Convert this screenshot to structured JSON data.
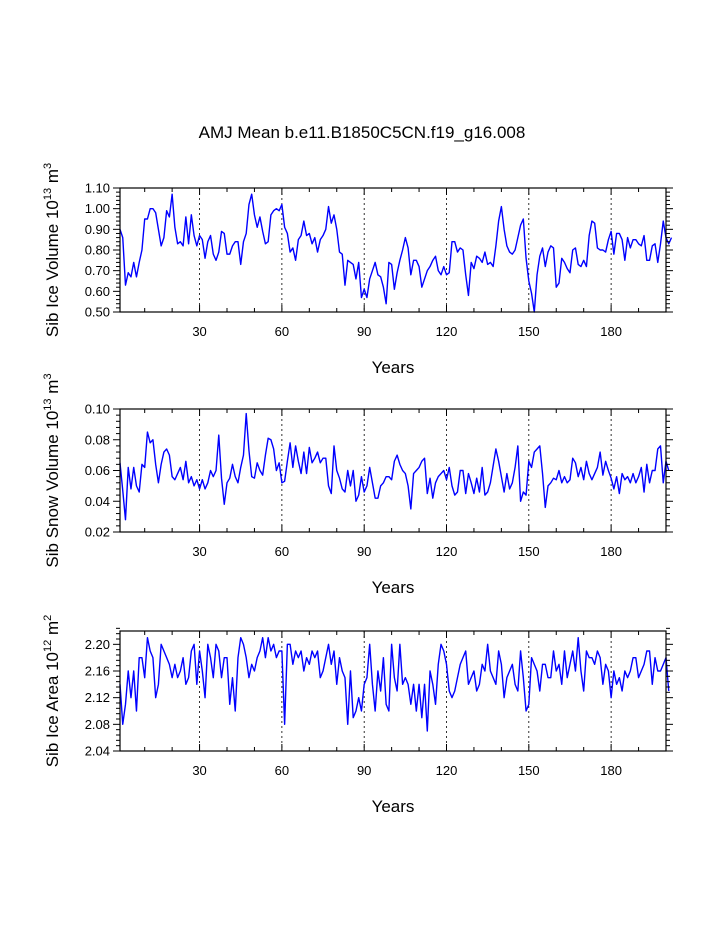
{
  "title": "AMJ Mean b.e11.B1850C5CN.f19_g16.008",
  "chart_data": [
    {
      "type": "line",
      "ylabel": {
        "main": "Sib Ice Volume 10",
        "exp": "13",
        "unit": " m",
        "unit_exp": "3"
      },
      "xlabel": "Years",
      "xlim": [
        1,
        200
      ],
      "ylim": [
        0.5,
        1.1
      ],
      "yticks": [
        0.5,
        0.6,
        0.7,
        0.8,
        0.9,
        1.0,
        1.1
      ],
      "ytick_labels": [
        "0.50",
        "0.60",
        "0.70",
        "0.80",
        "0.90",
        "1.00",
        "1.10"
      ],
      "xticks": [
        30,
        60,
        90,
        120,
        150,
        180
      ],
      "xtick_labels": [
        "30",
        "60",
        "90",
        "120",
        "150",
        "180"
      ],
      "grid_x": [
        30,
        60,
        90,
        120,
        150,
        180
      ],
      "line_color": "#0000ff",
      "values": [
        0.9,
        0.86,
        0.63,
        0.69,
        0.67,
        0.74,
        0.67,
        0.74,
        0.8,
        0.95,
        0.95,
        1.0,
        1.0,
        0.98,
        0.9,
        0.82,
        0.86,
        0.99,
        0.96,
        1.07,
        0.91,
        0.83,
        0.84,
        0.82,
        0.96,
        0.83,
        0.97,
        0.87,
        0.82,
        0.87,
        0.85,
        0.76,
        0.84,
        0.87,
        0.78,
        0.75,
        0.79,
        0.89,
        0.88,
        0.78,
        0.78,
        0.82,
        0.84,
        0.84,
        0.73,
        0.84,
        0.88,
        1.02,
        1.07,
        0.97,
        0.91,
        0.96,
        0.89,
        0.83,
        0.84,
        0.97,
        0.99,
        1.0,
        0.99,
        1.02,
        0.91,
        0.88,
        0.79,
        0.81,
        0.75,
        0.85,
        0.87,
        0.94,
        0.87,
        0.88,
        0.83,
        0.86,
        0.79,
        0.85,
        0.87,
        0.9,
        1.01,
        0.93,
        0.97,
        0.9,
        0.79,
        0.78,
        0.63,
        0.75,
        0.74,
        0.73,
        0.66,
        0.74,
        0.57,
        0.61,
        0.57,
        0.66,
        0.7,
        0.74,
        0.68,
        0.67,
        0.62,
        0.54,
        0.74,
        0.73,
        0.61,
        0.69,
        0.75,
        0.8,
        0.86,
        0.81,
        0.68,
        0.75,
        0.75,
        0.72,
        0.62,
        0.66,
        0.7,
        0.72,
        0.75,
        0.77,
        0.7,
        0.68,
        0.72,
        0.68,
        0.69,
        0.84,
        0.84,
        0.79,
        0.81,
        0.8,
        0.68,
        0.58,
        0.74,
        0.71,
        0.77,
        0.76,
        0.74,
        0.79,
        0.73,
        0.74,
        0.72,
        0.82,
        0.94,
        1.01,
        0.9,
        0.82,
        0.79,
        0.78,
        0.8,
        0.86,
        0.92,
        0.95,
        0.76,
        0.65,
        0.59,
        0.5,
        0.68,
        0.77,
        0.81,
        0.72,
        0.79,
        0.82,
        0.81,
        0.62,
        0.64,
        0.76,
        0.74,
        0.71,
        0.69,
        0.8,
        0.81,
        0.73,
        0.72,
        0.75,
        0.72,
        0.87,
        0.94,
        0.93,
        0.81,
        0.8,
        0.8,
        0.79,
        0.85,
        0.89,
        0.78,
        0.88,
        0.88,
        0.85,
        0.75,
        0.86,
        0.81,
        0.85,
        0.85,
        0.83,
        0.82,
        0.87,
        0.75,
        0.75,
        0.82,
        0.83,
        0.74,
        0.83,
        0.94,
        0.86,
        0.83,
        0.86
      ]
    },
    {
      "type": "line",
      "ylabel": {
        "main": "Sib Snow Volume 10",
        "exp": "13",
        "unit": " m",
        "unit_exp": "3"
      },
      "xlabel": "Years",
      "xlim": [
        1,
        200
      ],
      "ylim": [
        0.02,
        0.1
      ],
      "yticks": [
        0.02,
        0.04,
        0.06,
        0.08,
        0.1
      ],
      "ytick_labels": [
        "0.02",
        "0.04",
        "0.06",
        "0.08",
        "0.10"
      ],
      "xticks": [
        30,
        60,
        90,
        120,
        150,
        180
      ],
      "xtick_labels": [
        "30",
        "60",
        "90",
        "120",
        "150",
        "180"
      ],
      "grid_x": [
        30,
        60,
        90,
        120,
        150,
        180
      ],
      "line_color": "#0000ff",
      "values": [
        0.065,
        0.047,
        0.028,
        0.062,
        0.048,
        0.062,
        0.05,
        0.046,
        0.064,
        0.062,
        0.085,
        0.078,
        0.08,
        0.064,
        0.052,
        0.064,
        0.072,
        0.074,
        0.07,
        0.056,
        0.054,
        0.058,
        0.062,
        0.054,
        0.066,
        0.052,
        0.056,
        0.05,
        0.054,
        0.048,
        0.054,
        0.048,
        0.052,
        0.06,
        0.056,
        0.06,
        0.083,
        0.055,
        0.038,
        0.052,
        0.055,
        0.064,
        0.056,
        0.052,
        0.062,
        0.07,
        0.097,
        0.073,
        0.056,
        0.055,
        0.065,
        0.06,
        0.057,
        0.07,
        0.081,
        0.08,
        0.074,
        0.06,
        0.065,
        0.052,
        0.053,
        0.066,
        0.078,
        0.062,
        0.076,
        0.066,
        0.058,
        0.072,
        0.058,
        0.075,
        0.065,
        0.068,
        0.072,
        0.065,
        0.068,
        0.068,
        0.05,
        0.045,
        0.076,
        0.06,
        0.055,
        0.048,
        0.046,
        0.06,
        0.05,
        0.06,
        0.04,
        0.044,
        0.056,
        0.046,
        0.05,
        0.062,
        0.052,
        0.042,
        0.042,
        0.05,
        0.052,
        0.056,
        0.056,
        0.054,
        0.066,
        0.07,
        0.064,
        0.06,
        0.058,
        0.05,
        0.035,
        0.058,
        0.06,
        0.062,
        0.066,
        0.068,
        0.045,
        0.055,
        0.042,
        0.052,
        0.056,
        0.058,
        0.06,
        0.054,
        0.062,
        0.05,
        0.044,
        0.046,
        0.06,
        0.06,
        0.045,
        0.058,
        0.052,
        0.045,
        0.055,
        0.046,
        0.062,
        0.044,
        0.046,
        0.052,
        0.063,
        0.074,
        0.066,
        0.056,
        0.046,
        0.058,
        0.048,
        0.052,
        0.062,
        0.076,
        0.04,
        0.046,
        0.044,
        0.066,
        0.062,
        0.072,
        0.074,
        0.076,
        0.058,
        0.036,
        0.05,
        0.052,
        0.055,
        0.054,
        0.06,
        0.052,
        0.056,
        0.052,
        0.054,
        0.068,
        0.065,
        0.056,
        0.062,
        0.054,
        0.066,
        0.058,
        0.054,
        0.058,
        0.062,
        0.072,
        0.057,
        0.066,
        0.06,
        0.055,
        0.048,
        0.056,
        0.045,
        0.058,
        0.054,
        0.056,
        0.052,
        0.058,
        0.052,
        0.056,
        0.062,
        0.046,
        0.064,
        0.052,
        0.06,
        0.06,
        0.074,
        0.076,
        0.052,
        0.066,
        0.06
      ]
    },
    {
      "type": "line",
      "ylabel": {
        "main": "Sib Ice Area 10",
        "exp": "12",
        "unit": " m",
        "unit_exp": "2"
      },
      "xlabel": "Years",
      "xlim": [
        1,
        200
      ],
      "ylim": [
        2.04,
        2.22
      ],
      "yticks": [
        2.04,
        2.08,
        2.12,
        2.16,
        2.2
      ],
      "ytick_labels": [
        "2.04",
        "2.08",
        "2.12",
        "2.16",
        "2.20"
      ],
      "xticks": [
        30,
        60,
        90,
        120,
        150,
        180
      ],
      "xtick_labels": [
        "30",
        "60",
        "90",
        "120",
        "150",
        "180"
      ],
      "grid_x": [
        30,
        60,
        90,
        120,
        150,
        180
      ],
      "line_color": "#0000ff",
      "values": [
        2.14,
        2.08,
        2.11,
        2.16,
        2.12,
        2.16,
        2.1,
        2.18,
        2.18,
        2.15,
        2.21,
        2.19,
        2.18,
        2.12,
        2.14,
        2.2,
        2.19,
        2.18,
        2.17,
        2.15,
        2.17,
        2.15,
        2.16,
        2.18,
        2.14,
        2.15,
        2.19,
        2.2,
        2.14,
        2.19,
        2.16,
        2.12,
        2.2,
        2.18,
        2.15,
        2.2,
        2.19,
        2.15,
        2.18,
        2.18,
        2.11,
        2.15,
        2.1,
        2.18,
        2.21,
        2.2,
        2.18,
        2.15,
        2.17,
        2.16,
        2.18,
        2.19,
        2.21,
        2.18,
        2.21,
        2.19,
        2.2,
        2.18,
        2.19,
        2.19,
        2.08,
        2.2,
        2.2,
        2.17,
        2.19,
        2.18,
        2.19,
        2.16,
        2.18,
        2.17,
        2.19,
        2.18,
        2.19,
        2.15,
        2.16,
        2.18,
        2.2,
        2.17,
        2.19,
        2.14,
        2.18,
        2.16,
        2.15,
        2.08,
        2.16,
        2.09,
        2.1,
        2.12,
        2.1,
        2.14,
        2.15,
        2.2,
        2.14,
        2.1,
        2.16,
        2.13,
        2.18,
        2.11,
        2.1,
        2.2,
        2.15,
        2.13,
        2.2,
        2.14,
        2.15,
        2.14,
        2.11,
        2.14,
        2.1,
        2.14,
        2.09,
        2.14,
        2.07,
        2.16,
        2.14,
        2.11,
        2.17,
        2.2,
        2.19,
        2.17,
        2.13,
        2.12,
        2.13,
        2.15,
        2.17,
        2.18,
        2.19,
        2.14,
        2.15,
        2.16,
        2.13,
        2.14,
        2.17,
        2.16,
        2.2,
        2.16,
        2.15,
        2.14,
        2.19,
        2.17,
        2.12,
        2.15,
        2.16,
        2.17,
        2.14,
        2.13,
        2.19,
        2.15,
        2.1,
        2.11,
        2.18,
        2.17,
        2.16,
        2.13,
        2.17,
        2.17,
        2.15,
        2.15,
        2.19,
        2.16,
        2.17,
        2.14,
        2.19,
        2.15,
        2.17,
        2.19,
        2.16,
        2.21,
        2.16,
        2.13,
        2.19,
        2.18,
        2.18,
        2.17,
        2.19,
        2.18,
        2.14,
        2.17,
        2.16,
        2.12,
        2.16,
        2.14,
        2.15,
        2.13,
        2.16,
        2.15,
        2.16,
        2.18,
        2.18,
        2.15,
        2.16,
        2.17,
        2.19,
        2.19,
        2.14,
        2.18,
        2.16,
        2.16,
        2.17,
        2.18,
        2.13
      ]
    }
  ]
}
